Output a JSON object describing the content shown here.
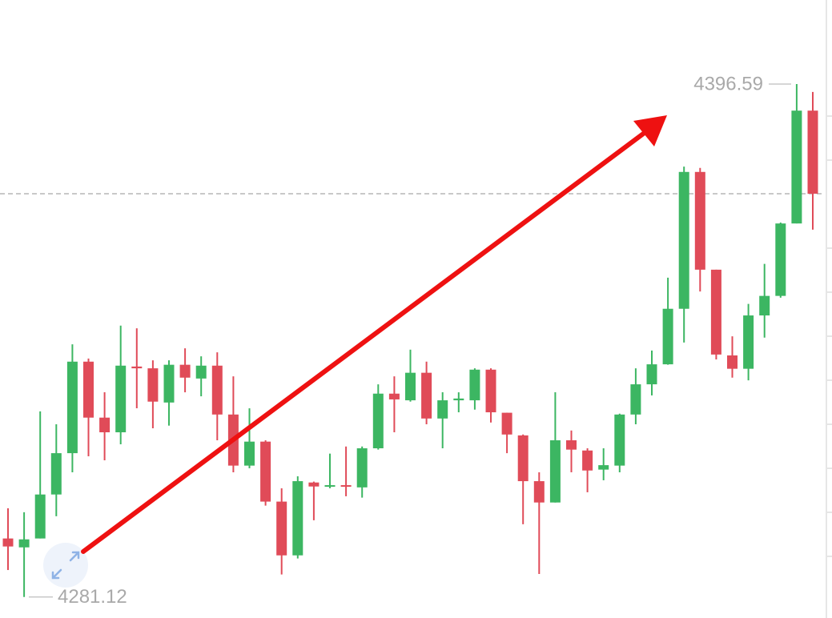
{
  "chart_data": {
    "type": "candlestick",
    "open": [
      4294.3,
      4292.3,
      4294.3,
      4304.2,
      4313.5,
      4334.1,
      4321.5,
      4318.2,
      4333.0,
      4332.6,
      4324.9,
      4333.4,
      4330.3,
      4333.2,
      4322.2,
      4310.7,
      4316.1,
      4302.6,
      4290.5,
      4306.9,
      4306.0,
      4306.3,
      4305.8,
      4314.6,
      4326.9,
      4325.4,
      4331.6,
      4321.3,
      4325.4,
      4325.4,
      4332.3,
      4322.6,
      4317.5,
      4307.2,
      4302.4,
      4316.4,
      4314.1,
      4309.8,
      4310.7,
      4322.2,
      4329.0,
      4333.5,
      4346.0,
      4376.8,
      4354.8,
      4335.5,
      4332.5,
      4344.5,
      4348.9,
      4365.2,
      4390.6
    ],
    "high": [
      4301.1,
      4300.2,
      4322.9,
      4320.0,
      4338.0,
      4334.8,
      4327.2,
      4342.2,
      4341.6,
      4334.4,
      4334.4,
      4337.1,
      4335.3,
      4336.2,
      4330.8,
      4323.6,
      4316.4,
      4305.6,
      4308.3,
      4307.1,
      4313.4,
      4315.0,
      4315.0,
      4329.0,
      4330.8,
      4336.8,
      4334.1,
      4327.2,
      4327.2,
      4332.6,
      4332.6,
      4322.6,
      4317.7,
      4309.2,
      4327.2,
      4318.6,
      4314.6,
      4314.6,
      4322.4,
      4332.6,
      4336.6,
      4353.0,
      4378.0,
      4377.7,
      4354.8,
      4339.8,
      4347.1,
      4356.1,
      4365.4,
      4396.59,
      4394.8
    ],
    "low": [
      4287.2,
      4281.12,
      4294.3,
      4299.3,
      4309.2,
      4312.8,
      4311.9,
      4315.5,
      4323.6,
      4319.1,
      4319.7,
      4327.2,
      4326.3,
      4316.4,
      4309.2,
      4310.1,
      4301.7,
      4286.2,
      4289.8,
      4298.4,
      4305.6,
      4303.8,
      4303.5,
      4314.3,
      4318.2,
      4325.1,
      4320.0,
      4314.6,
      4322.7,
      4323.3,
      4320.4,
      4313.5,
      4297.5,
      4286.3,
      4302.4,
      4309.2,
      4304.7,
      4307.4,
      4309.2,
      4320.0,
      4326.5,
      4333.4,
      4338.4,
      4349.9,
      4334.6,
      4330.5,
      4329.9,
      4339.5,
      4348.5,
      4365.2,
      4363.8
    ],
    "close": [
      4292.5,
      4294.1,
      4304.2,
      4313.5,
      4334.1,
      4321.5,
      4318.2,
      4333.2,
      4332.6,
      4325.1,
      4333.4,
      4330.5,
      4333.2,
      4322.2,
      4310.7,
      4316.1,
      4302.6,
      4290.5,
      4307.2,
      4306.0,
      4306.3,
      4306.0,
      4314.6,
      4326.9,
      4325.6,
      4331.6,
      4321.3,
      4325.4,
      4325.8,
      4332.3,
      4322.7,
      4317.7,
      4307.2,
      4302.4,
      4316.4,
      4314.3,
      4309.6,
      4310.8,
      4322.2,
      4329.0,
      4333.5,
      4346.0,
      4376.8,
      4354.8,
      4335.7,
      4332.5,
      4344.5,
      4348.9,
      4365.2,
      4390.6,
      4371.9
    ],
    "up_color": "#3cb662",
    "down_color": "#e04b58",
    "ylim": [
      4276.4,
      4415.5
    ]
  }
}
